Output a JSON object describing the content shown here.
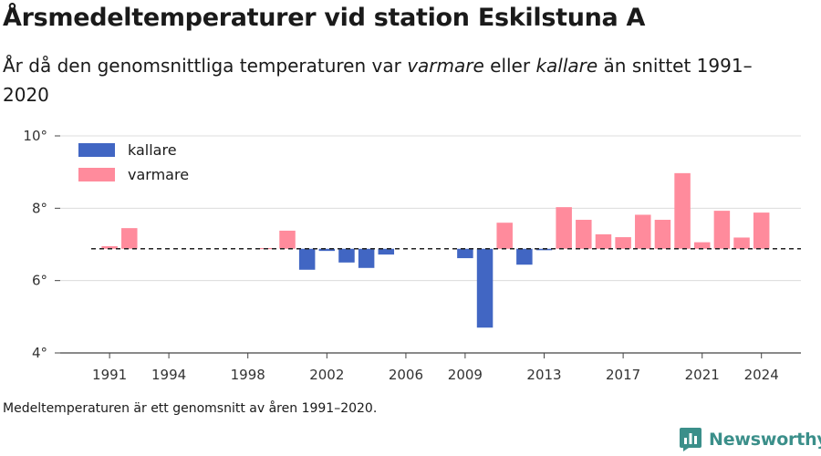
{
  "title": "Årsmedeltemperaturer vid station Eskilstuna A",
  "subtitle": {
    "part1": "År då den genomsnittliga temperaturen var ",
    "warm_word": "varmare",
    "part2": " eller ",
    "cold_word": "kallare",
    "part3": " än snittet 1991–2020"
  },
  "caption": "Medeltemperaturen är ett genomsnitt av åren 1991–2020.",
  "brand": {
    "name": "Newsworthy",
    "icon": "newsworthy-logo-icon",
    "color": "#3b8f8a"
  },
  "chart_data": {
    "type": "bar",
    "baseline": 6.88,
    "ylim": [
      4,
      10
    ],
    "y_ticks": [
      {
        "value": 10,
        "label": "10°"
      },
      {
        "value": 8,
        "label": "8°"
      },
      {
        "value": 6,
        "label": "6°"
      },
      {
        "value": 4,
        "label": "4°"
      }
    ],
    "x_ticks": [
      1991,
      1994,
      1998,
      2002,
      2006,
      2009,
      2013,
      2017,
      2021,
      2024
    ],
    "x_tick_labels": [
      "1991",
      "1994",
      "1998",
      "2002",
      "2006",
      "2009",
      "2013",
      "2017",
      "2021",
      "2024"
    ],
    "xlim": [
      1988.5,
      2026
    ],
    "grid": true,
    "legend": {
      "position": "top-left",
      "items": [
        {
          "label": "kallare",
          "color": "#4166c3"
        },
        {
          "label": "varmare",
          "color": "#ff8b9c"
        }
      ]
    },
    "colors": {
      "warmer": "#ff8b9c",
      "colder": "#4166c3"
    },
    "years": [
      1991,
      1992,
      1999,
      2000,
      2001,
      2002,
      2003,
      2004,
      2005,
      2009,
      2010,
      2011,
      2012,
      2013,
      2014,
      2015,
      2016,
      2017,
      2018,
      2019,
      2020,
      2021,
      2022,
      2023,
      2024
    ],
    "values": [
      6.95,
      7.45,
      6.9,
      7.38,
      6.3,
      6.82,
      6.5,
      6.35,
      6.72,
      6.62,
      4.7,
      7.6,
      6.44,
      6.84,
      8.03,
      7.68,
      7.28,
      7.2,
      7.82,
      7.68,
      8.97,
      7.06,
      7.93,
      7.19,
      7.88
    ]
  }
}
